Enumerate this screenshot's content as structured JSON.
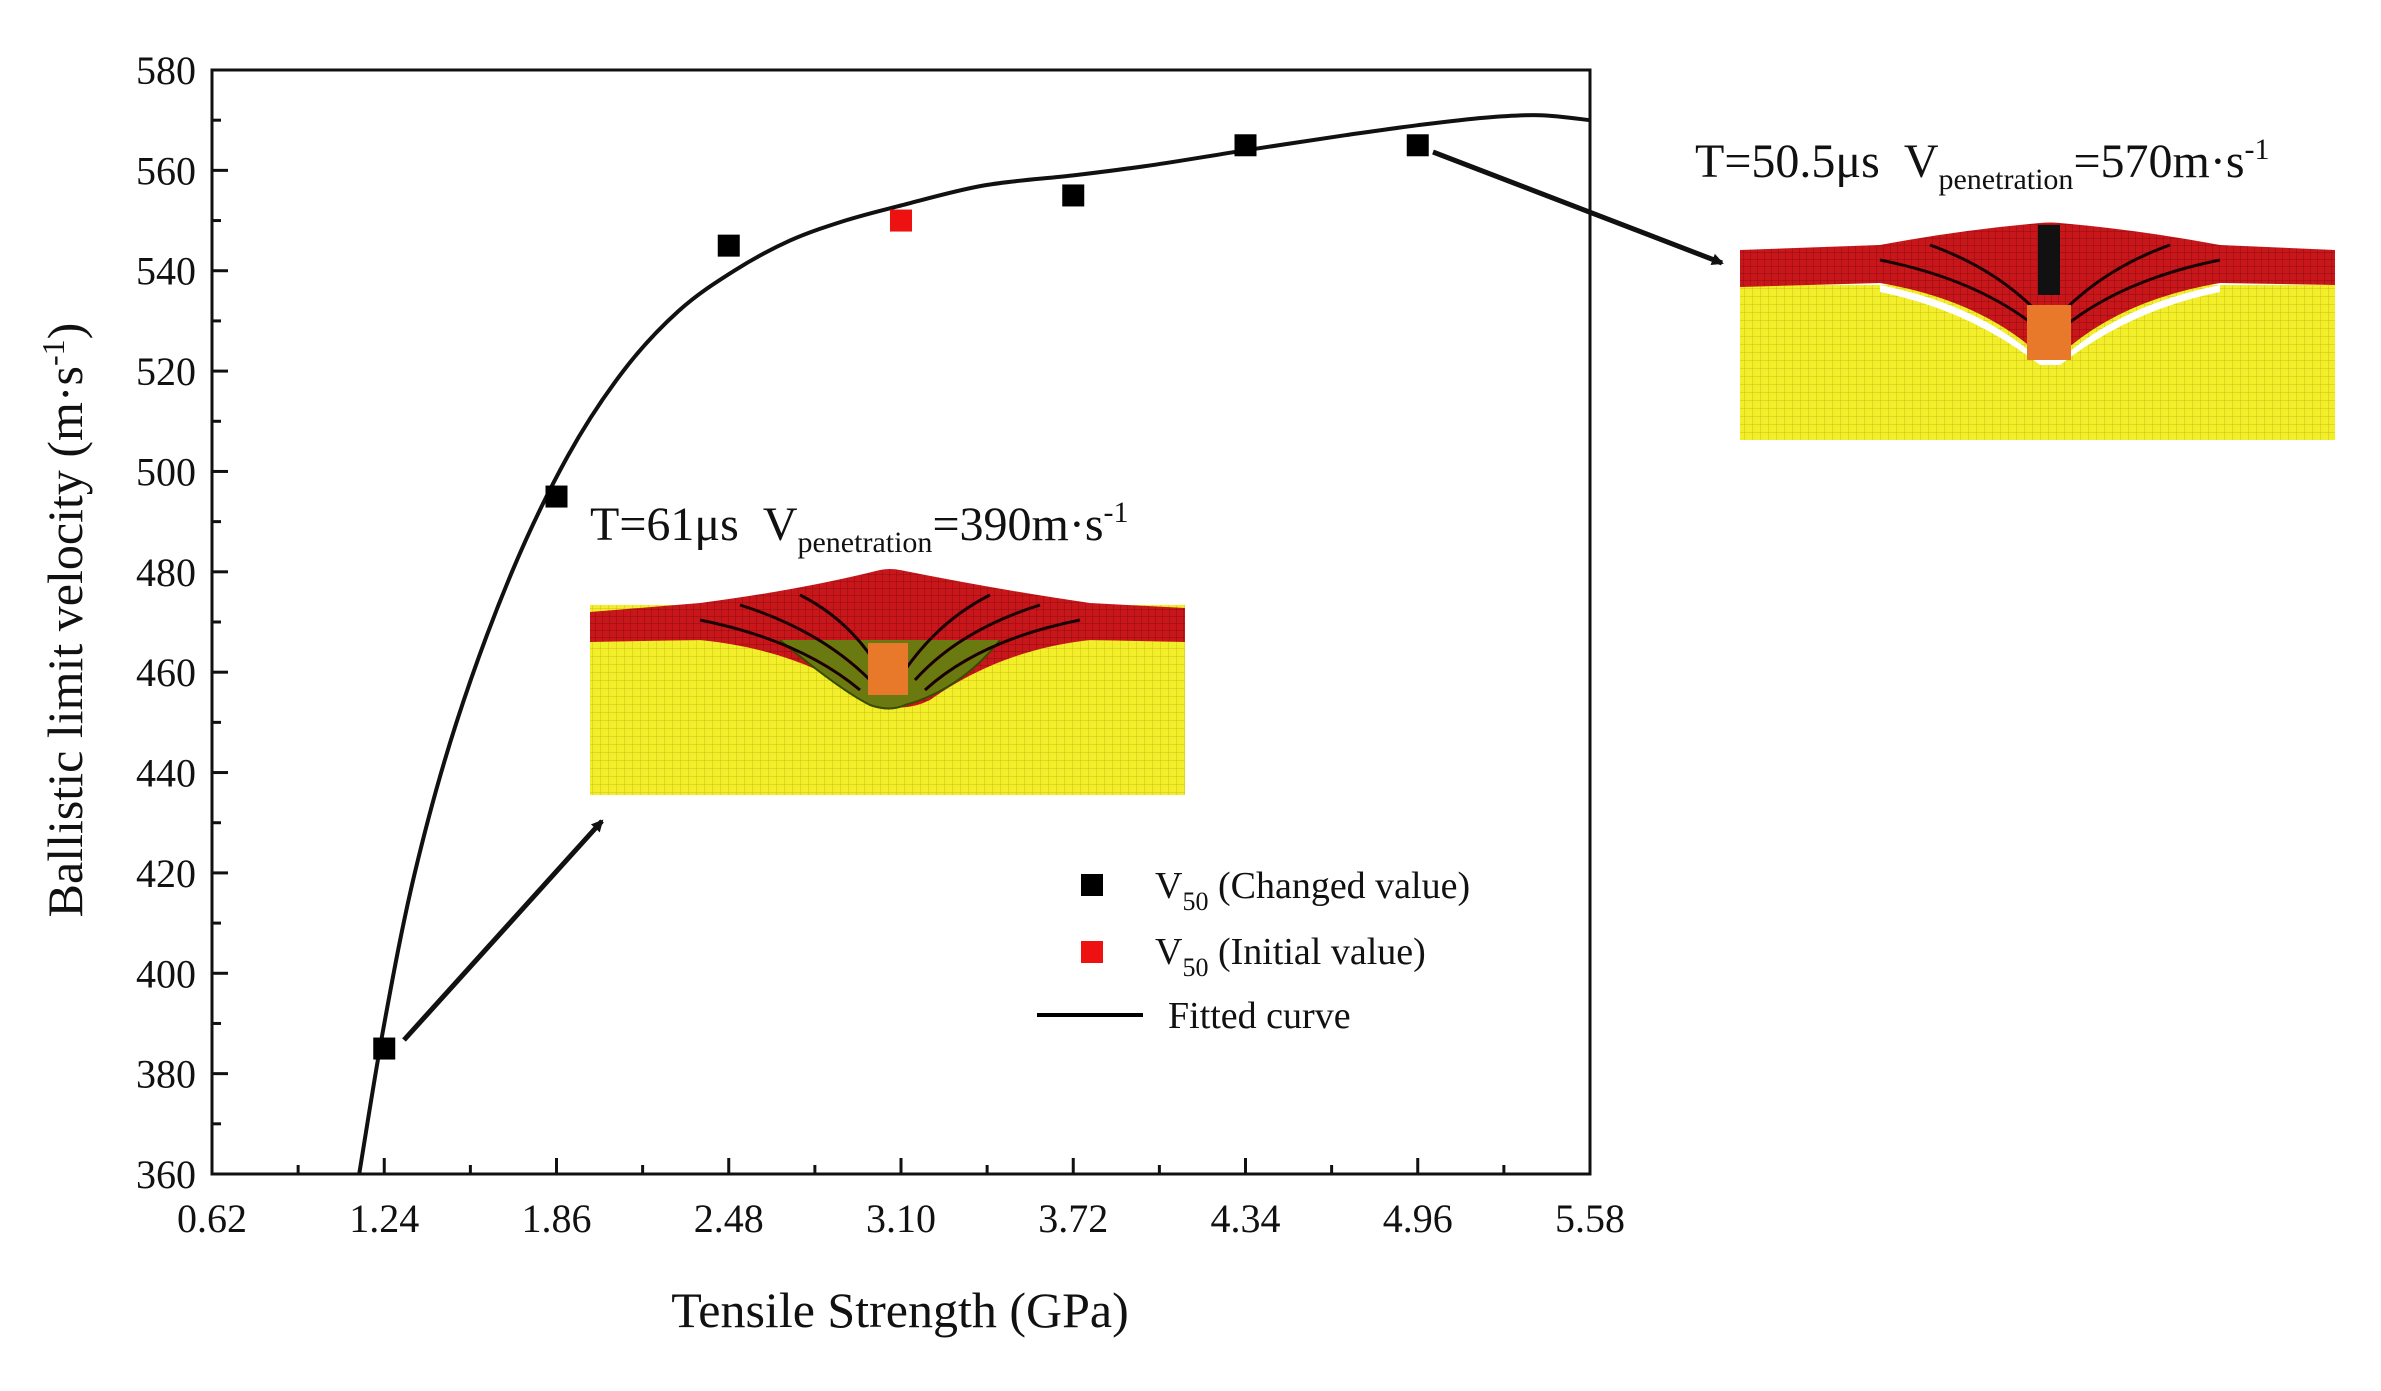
{
  "chart_data": {
    "type": "scatter",
    "title": "",
    "xlabel": "Tensile Strength (GPa)",
    "ylabel_main": "Ballistic limit velocity (m·s",
    "ylabel_sup": "-1",
    "ylabel_close": ")",
    "xlim": [
      0.62,
      5.58
    ],
    "ylim": [
      360,
      580
    ],
    "x_ticks": [
      "0.62",
      "1.24",
      "1.86",
      "2.48",
      "3.10",
      "3.72",
      "4.34",
      "4.96",
      "5.58"
    ],
    "y_ticks": [
      "360",
      "380",
      "400",
      "420",
      "440",
      "460",
      "480",
      "500",
      "520",
      "540",
      "560",
      "580"
    ],
    "series": [
      {
        "name": "V50 (Changed value)",
        "color": "#000000",
        "points": [
          {
            "x": 1.24,
            "y": 385
          },
          {
            "x": 1.86,
            "y": 495
          },
          {
            "x": 2.48,
            "y": 545
          },
          {
            "x": 3.72,
            "y": 555
          },
          {
            "x": 4.34,
            "y": 565
          },
          {
            "x": 4.96,
            "y": 565
          }
        ]
      },
      {
        "name": "V50 (Initial value)",
        "color": "#ee1111",
        "points": [
          {
            "x": 3.1,
            "y": 550
          }
        ]
      }
    ],
    "fitted_curve": {
      "name": "Fitted curve",
      "color": "#000000",
      "points": [
        {
          "x": 1.15,
          "y": 360
        },
        {
          "x": 1.24,
          "y": 390
        },
        {
          "x": 1.35,
          "y": 420
        },
        {
          "x": 1.5,
          "y": 450
        },
        {
          "x": 1.7,
          "y": 480
        },
        {
          "x": 1.9,
          "y": 503
        },
        {
          "x": 2.1,
          "y": 520
        },
        {
          "x": 2.3,
          "y": 532
        },
        {
          "x": 2.5,
          "y": 540
        },
        {
          "x": 2.7,
          "y": 546
        },
        {
          "x": 2.9,
          "y": 550
        },
        {
          "x": 3.1,
          "y": 553
        },
        {
          "x": 3.4,
          "y": 557
        },
        {
          "x": 3.72,
          "y": 559
        },
        {
          "x": 4.0,
          "y": 561
        },
        {
          "x": 4.34,
          "y": 564
        },
        {
          "x": 4.7,
          "y": 567
        },
        {
          "x": 4.96,
          "y": 569
        },
        {
          "x": 5.2,
          "y": 570.5
        },
        {
          "x": 5.4,
          "y": 571
        },
        {
          "x": 5.58,
          "y": 570
        }
      ]
    },
    "legend": {
      "position": "bottom-right",
      "items": [
        {
          "prefix": "V",
          "sub": "50",
          "suffix": " (Changed value)",
          "marker": "square",
          "color": "#000000"
        },
        {
          "prefix": "V",
          "sub": "50",
          "suffix": " (Initial value)",
          "marker": "square",
          "color": "#ee1111"
        },
        {
          "prefix": "Fitted curve",
          "sub": "",
          "suffix": "",
          "marker": "line",
          "color": "#000000"
        }
      ]
    },
    "annotations": [
      {
        "id": "low",
        "time": "T=61μs",
        "v_prefix": "V",
        "v_sub": "penetration",
        "v_value": "=390m·s",
        "v_sup": "-1",
        "points_to": {
          "x": 1.24,
          "y": 385
        }
      },
      {
        "id": "high",
        "time": "T=50.5μs",
        "v_prefix": "V",
        "v_sub": "penetration",
        "v_value": "=570m·s",
        "v_sup": "-1",
        "points_to": {
          "x": 4.96,
          "y": 565
        }
      }
    ]
  }
}
